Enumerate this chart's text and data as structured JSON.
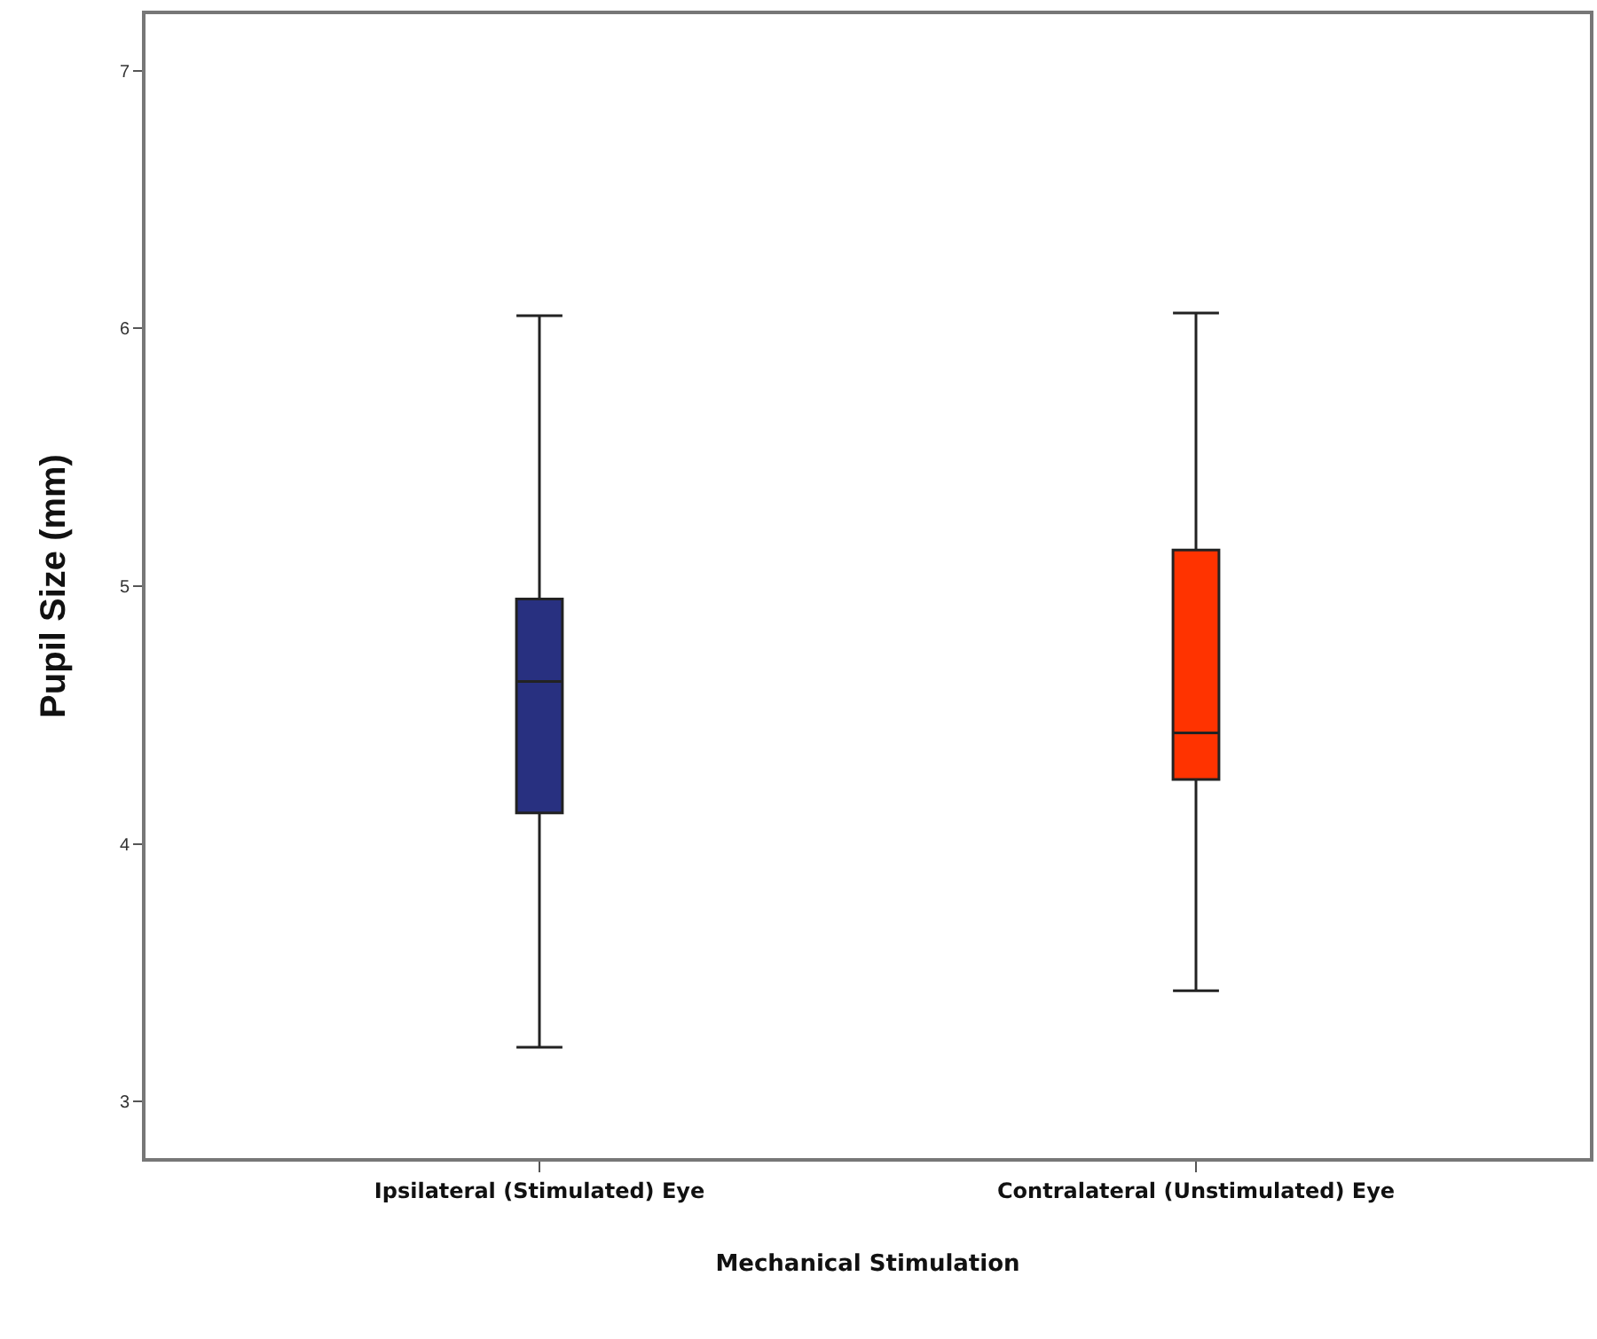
{
  "chart_data": {
    "type": "box",
    "xlabel": "Mechanical Stimulation",
    "ylabel": "Pupil Size (mm)",
    "categories": [
      "Ipsilateral (Stimulated) Eye",
      "Contralateral (Unstimulated) Eye"
    ],
    "colors": [
      "#283080",
      "#ff3300"
    ],
    "boxes": [
      {
        "low": 3.21,
        "q1": 4.12,
        "median": 4.63,
        "q3": 4.95,
        "high": 6.05
      },
      {
        "low": 3.43,
        "q1": 4.25,
        "median": 4.43,
        "q3": 5.14,
        "high": 6.06
      }
    ],
    "ylim": [
      2.78,
      7.22
    ],
    "yticks": [
      3,
      4,
      5,
      6,
      7
    ]
  }
}
